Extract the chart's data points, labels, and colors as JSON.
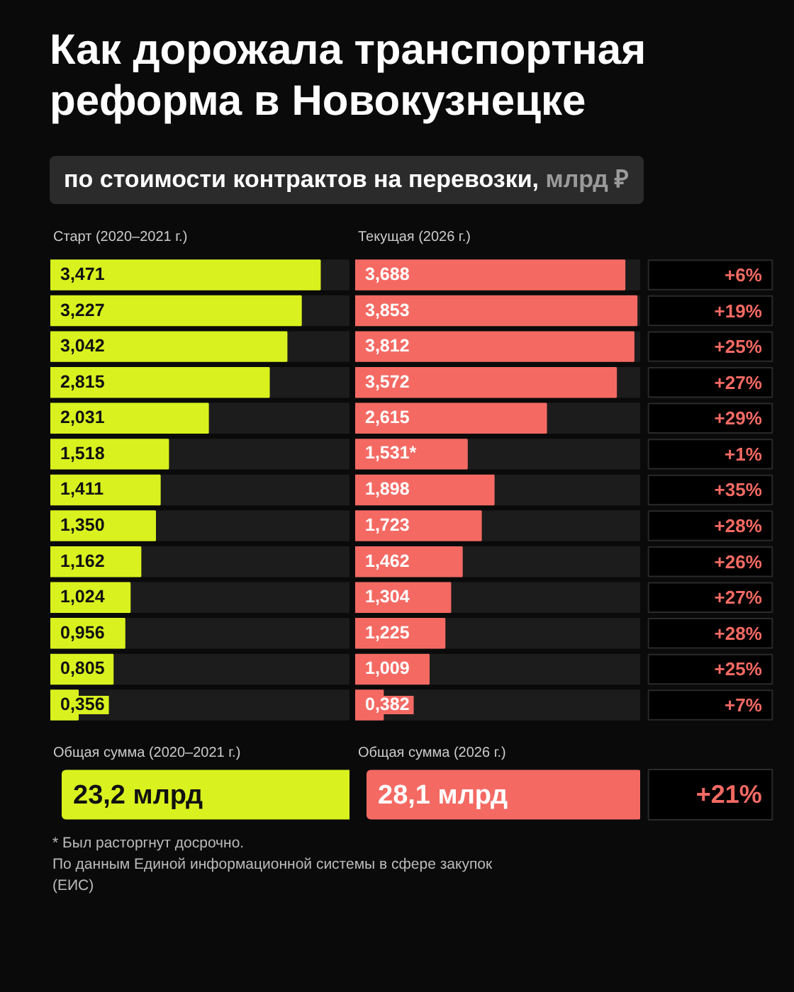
{
  "chart_data": [
    {
      "type": "bar",
      "orientation": "horizontal",
      "title": "Как дорожала транспортная реформа в Новокузнецке",
      "subtitle": "по стоимости контрактов на перевозки, млрд ₽",
      "xlabel": "Старт (2020–2021 г.)",
      "color": "#d9f21f",
      "xlim": [
        0,
        3.85
      ],
      "categories": [
        null,
        null,
        null,
        null,
        null,
        null,
        null,
        null,
        null,
        null,
        null,
        null,
        null
      ],
      "values": [
        3.471,
        3.227,
        3.042,
        2.815,
        2.031,
        1.518,
        1.411,
        1.35,
        1.162,
        1.024,
        0.956,
        0.805,
        0.356
      ],
      "value_labels": [
        "3,471",
        "3,227",
        "3,042",
        "2,815",
        "2,031",
        "1,518",
        "1,411",
        "1,350",
        "1,162",
        "1,024",
        "0,956",
        "0,805",
        "0,356"
      ],
      "annotations": [
        "Общая сумма (2020–2021 г.)",
        "23,2 млрд",
        "* Был расторгнут досрочно.",
        "По данным Единой информационной системы в сфере закупок (ЕИС)"
      ]
    },
    {
      "type": "bar",
      "orientation": "horizontal",
      "xlabel": "Текущая (2026 г.)",
      "color": "#f46a63",
      "xlim": [
        0,
        3.9
      ],
      "categories": [
        null,
        null,
        null,
        null,
        null,
        null,
        null,
        null,
        null,
        null,
        null,
        null,
        null
      ],
      "values": [
        3.688,
        3.853,
        3.812,
        3.572,
        2.615,
        1.531,
        1.898,
        1.723,
        1.462,
        1.304,
        1.225,
        1.009,
        0.382
      ],
      "value_labels": [
        "3,688",
        "3,853",
        "3,812",
        "3,572",
        "2,615",
        "1,531*",
        "1,898",
        "1,723",
        "1,462",
        "1,304",
        "1,225",
        "1,009",
        "0,382"
      ],
      "annotations": [
        "Общая сумма (2026 г.)",
        "28,1 млрд"
      ]
    },
    {
      "type": "other",
      "color": "#f46a63",
      "annotations": [
        "+6%",
        "+19%",
        "+25%",
        "+27%",
        "+29%",
        "+1%",
        "+35%",
        "+28%",
        "+26%",
        "+27%",
        "+28%",
        "+25%",
        "+7%",
        "+21%"
      ]
    }
  ]
}
